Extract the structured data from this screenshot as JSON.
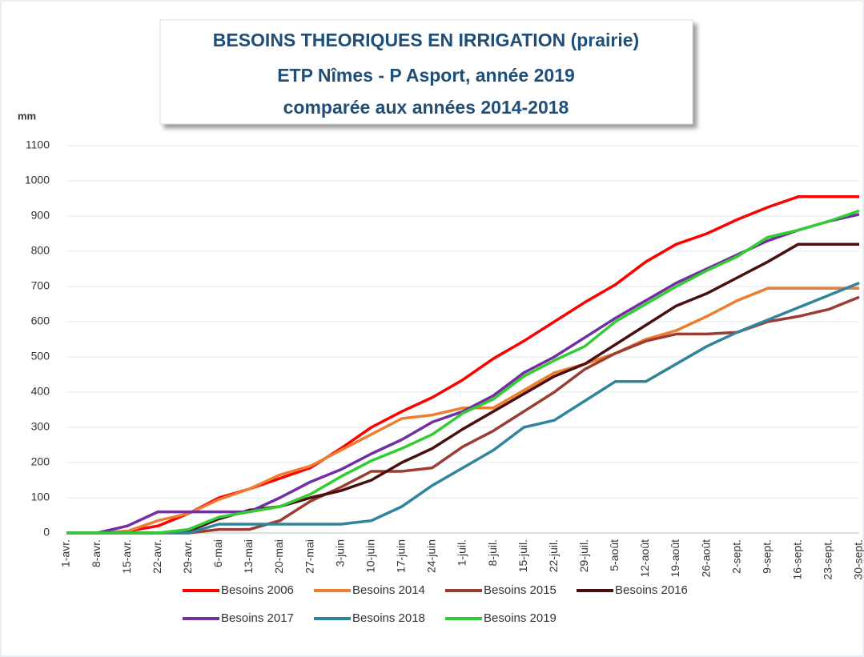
{
  "chart_data": {
    "type": "line",
    "title": [
      "BESOINS THEORIQUES EN IRRIGATION (prairie)",
      "ETP Nîmes - P Asport, année 2019",
      "comparée aux années 2014-2018"
    ],
    "y_label": "mm",
    "categories": [
      "1-avr.",
      "8-avr.",
      "15-avr.",
      "22-avr.",
      "29-avr.",
      "6-mai",
      "13-mai",
      "20-mai",
      "27-mai",
      "3-juin",
      "10-juin",
      "17-juin",
      "24-juin",
      "1-juil.",
      "8-juil.",
      "15-juil.",
      "22-juil.",
      "29-juil.",
      "5-août",
      "12-août",
      "19-août",
      "26-août",
      "2-sept.",
      "9-sept.",
      "16-sept.",
      "23-sept.",
      "30-sept."
    ],
    "series": [
      {
        "name": "Besoins 2006",
        "color": "#ff0000",
        "values": [
          0,
          0,
          5,
          20,
          55,
          100,
          125,
          155,
          185,
          240,
          300,
          345,
          385,
          435,
          495,
          545,
          600,
          655,
          705,
          770,
          820,
          850,
          890,
          925,
          955,
          955,
          955
        ]
      },
      {
        "name": "Besoins 2014",
        "color": "#ed7d31",
        "values": [
          0,
          0,
          5,
          35,
          55,
          95,
          125,
          165,
          190,
          235,
          280,
          325,
          335,
          355,
          355,
          405,
          455,
          480,
          510,
          550,
          575,
          615,
          660,
          695,
          695,
          695,
          695
        ]
      },
      {
        "name": "Besoins 2015",
        "color": "#9b3d32",
        "values": [
          0,
          0,
          0,
          0,
          0,
          10,
          10,
          35,
          90,
          130,
          175,
          175,
          185,
          245,
          290,
          345,
          400,
          465,
          510,
          545,
          565,
          565,
          570,
          600,
          615,
          635,
          670
        ]
      },
      {
        "name": "Besoins 2016",
        "color": "#4a1010",
        "values": [
          0,
          0,
          0,
          0,
          5,
          40,
          65,
          75,
          100,
          120,
          150,
          200,
          240,
          295,
          345,
          395,
          445,
          480,
          535,
          590,
          645,
          680,
          725,
          770,
          820,
          820,
          820
        ]
      },
      {
        "name": "Besoins 2017",
        "color": "#7030a0",
        "values": [
          0,
          0,
          20,
          60,
          60,
          60,
          60,
          100,
          145,
          180,
          225,
          265,
          315,
          345,
          390,
          455,
          500,
          555,
          610,
          660,
          710,
          750,
          790,
          830,
          860,
          885,
          905
        ]
      },
      {
        "name": "Besoins 2018",
        "color": "#31849b",
        "values": [
          0,
          0,
          0,
          0,
          0,
          25,
          25,
          25,
          25,
          25,
          35,
          75,
          135,
          185,
          235,
          300,
          320,
          375,
          430,
          430,
          480,
          530,
          570,
          605,
          640,
          675,
          710
        ]
      },
      {
        "name": "Besoins 2019",
        "color": "#33cc33",
        "values": [
          0,
          0,
          0,
          0,
          10,
          45,
          60,
          75,
          110,
          160,
          205,
          240,
          280,
          340,
          380,
          445,
          490,
          530,
          600,
          650,
          700,
          745,
          785,
          840,
          860,
          885,
          915
        ]
      }
    ],
    "ylim": [
      0,
      1100
    ],
    "yticks": [
      0,
      100,
      200,
      300,
      400,
      500,
      600,
      700,
      800,
      900,
      1000,
      1100
    ],
    "grid": true
  }
}
